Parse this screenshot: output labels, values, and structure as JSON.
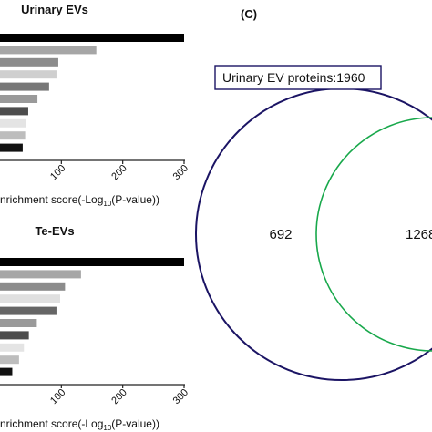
{
  "panel_c_label": "(C)",
  "chart_data": [
    {
      "type": "bar",
      "orientation": "horizontal",
      "title": "Urinary EVs",
      "xlabel_main": "nrichment score(-Log",
      "xlabel_sub": "10",
      "xlabel_end": "(P-value))",
      "xlim": [
        0,
        300
      ],
      "xticks": [
        "100",
        "200",
        "300"
      ],
      "values": [
        300,
        157,
        95,
        92,
        80,
        61,
        46,
        43,
        41,
        37
      ],
      "colors": [
        "#000000",
        "#a6a6a6",
        "#8c8c8c",
        "#cfcfcf",
        "#777777",
        "#9a9a9a",
        "#4d4d4d",
        "#e4e4e4",
        "#bdbdbd",
        "#111111"
      ]
    },
    {
      "type": "bar",
      "orientation": "horizontal",
      "title": "Te-EVs",
      "xlabel_main": "nrichment score(-Log",
      "xlabel_sub": "10",
      "xlabel_end": "(P-value))",
      "xlim": [
        0,
        300
      ],
      "xticks": [
        "100",
        "200",
        "300"
      ],
      "values": [
        300,
        132,
        106,
        98,
        92,
        60,
        47,
        39,
        31,
        20
      ],
      "colors": [
        "#000000",
        "#a6a6a6",
        "#8c8c8c",
        "#e0e0e0",
        "#666666",
        "#9a9a9a",
        "#4d4d4d",
        "#e4e4e4",
        "#bdbdbd",
        "#111111"
      ]
    },
    {
      "type": "venn",
      "box_label": "Urinary EV proteins:1960",
      "left_only": "692",
      "overlap": "1268",
      "colors": {
        "left_circle": "#1b1464",
        "right_circle": "#18a84b"
      }
    }
  ]
}
